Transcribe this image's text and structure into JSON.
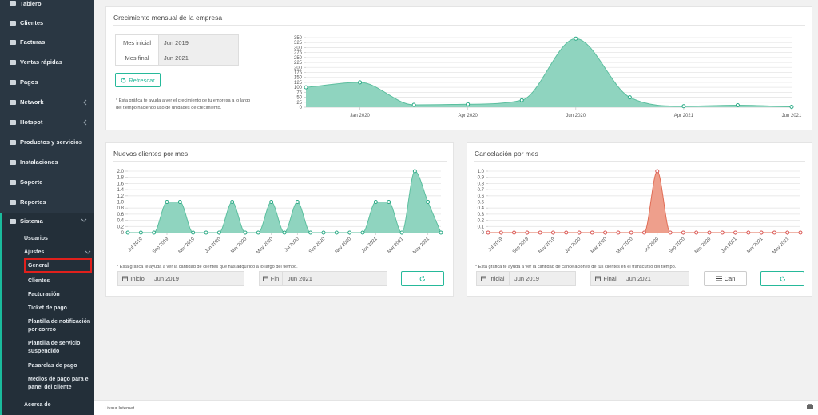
{
  "sidebar": {
    "menu": [
      "Tablero",
      "Clientes",
      "Facturas",
      "Ventas rápidas",
      "Pagos",
      "Network",
      "Hotspot",
      "Productos y servicios",
      "Instalaciones",
      "Soporte",
      "Reportes"
    ],
    "system": "Sistema",
    "system_menu": [
      "Usuarios",
      "Ajustes"
    ],
    "settings_menu": [
      "General",
      "Clientes",
      "Facturación",
      "Ticket de pago",
      "Plantilla de notificación por correo",
      "Plantilla de servicio suspendido",
      "Pasarelas de pago",
      "Medios de pago para el panel del cliente"
    ],
    "about": "Acerca de"
  },
  "panels": [
    {
      "start_label": "Mes inicial",
      "start_value": "Jun 2019",
      "end_label": "Mes final",
      "end_value": "Jun 2021",
      "button": "Refrescar",
      "note": "* Esta gráfica te ayuda a ver el crecimiento de tu empresa a lo largo del tiempo haciendo uso de unidades de crecimiento."
    },
    {
      "note": "* Esta gráfica te ayuda a ver la cantidad de clientes que has adquirido a lo largo del tiempo.",
      "start_label": "Inicio",
      "start_value": "Jun 2019",
      "end_label": "Fin",
      "end_value": "Jun 2021"
    },
    {
      "note": "* Esta gráfica te ayuda a ver la cantidad de cancelaciones de tus clientes en el transcurso del tiempo.",
      "start_label": "Inicial",
      "start_value": "Jun 2019",
      "end_label": "Final",
      "end_value": "Jun 2021",
      "button": "Can"
    }
  ],
  "chart_data": [
    {
      "type": "area",
      "title": "Crecimiento mensual de la empresa",
      "categories": [
        null,
        "Jan 2020",
        null,
        "Apr 2020",
        null,
        "Jun 2020",
        null,
        "Apr 2021",
        null,
        "Jun 2021"
      ],
      "values": [
        100,
        125,
        12,
        15,
        35,
        345,
        50,
        5,
        10,
        2
      ],
      "color": "#8fd4bf",
      "line_color": "#5cbf9f",
      "point_color": "#26a883",
      "ylim": [
        0,
        350
      ],
      "yticks": [
        0,
        25,
        50,
        75,
        100,
        125,
        150,
        175,
        200,
        225,
        250,
        275,
        300,
        325,
        350
      ],
      "grid": true
    },
    {
      "type": "area",
      "title": "Nuevos clientes por mes",
      "categories": [
        null,
        "Jul 2019",
        null,
        "Sep 2019",
        null,
        "Nov 2019",
        null,
        "Jan 2020",
        null,
        "Mar 2020",
        null,
        "May 2020",
        null,
        "Jul 2020",
        null,
        "Sep 2020",
        null,
        "Nov 2020",
        null,
        "Jan 2021",
        null,
        "Mar 2021",
        null,
        "May 2021",
        null
      ],
      "values": [
        0,
        0,
        0,
        1,
        1,
        0,
        0,
        0,
        1,
        0,
        0,
        1,
        0,
        1,
        0,
        0,
        0,
        0,
        0,
        1,
        1,
        0,
        2,
        1,
        0
      ],
      "color": "#8fd4bf",
      "line_color": "#5cbf9f",
      "point_color": "#26a883",
      "ylim": [
        0,
        2
      ],
      "yticks": [
        0,
        0.2,
        0.4,
        0.6,
        0.8,
        {
          "value": 1,
          "label": "1.0"
        },
        1.2,
        1.4,
        1.6,
        1.8,
        {
          "value": 2,
          "label": "2.0"
        }
      ],
      "grid": true
    },
    {
      "type": "area",
      "title": "Cancelación por mes",
      "categories": [
        null,
        "Jul 2019",
        null,
        "Sep 2019",
        null,
        "Nov 2019",
        null,
        "Jan 2020",
        null,
        "Mar 2020",
        null,
        "May 2020",
        null,
        "Jul 2020",
        null,
        "Sep 2020",
        null,
        "Nov 2020",
        null,
        "Jan 2021",
        null,
        "Mar 2021",
        null,
        "May 2021",
        null
      ],
      "values": [
        0,
        0,
        0,
        0,
        0,
        0,
        0,
        0,
        0,
        0,
        0,
        0,
        0,
        1,
        0,
        0,
        0,
        0,
        0,
        0,
        0,
        0,
        0,
        0,
        0
      ],
      "color": "#ee9f8c",
      "line_color": "#e06c55",
      "point_color": "#d9534f",
      "ylim": [
        0,
        1
      ],
      "yticks": [
        0,
        0.1,
        0.2,
        0.3,
        0.4,
        0.5,
        0.6,
        0.7,
        0.8,
        0.9,
        {
          "value": 1,
          "label": "1.0"
        }
      ],
      "grid": true
    }
  ],
  "footer": {
    "text": "Livaur Internet"
  }
}
